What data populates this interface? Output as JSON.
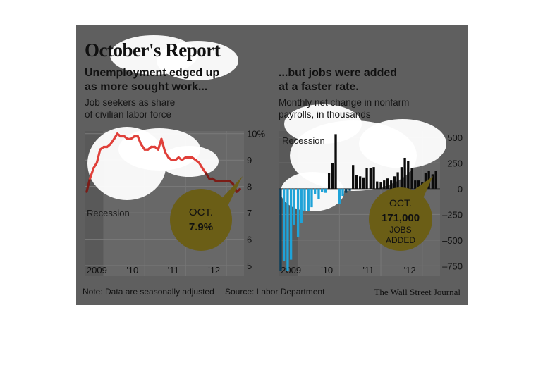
{
  "header": {
    "title": "October's Report",
    "left_headline_line1": "Unemployment edged up",
    "left_headline_line2": "as more sought work...",
    "left_subhead_line1": "Job seekers as share",
    "left_subhead_line2": "of civilian labor force",
    "right_headline_line1": "...but jobs were added",
    "right_headline_line2": "at a faster rate.",
    "right_subhead_line1": "Monthly net change in nonfarm",
    "right_subhead_line2": "payrolls, in thousands"
  },
  "footer": {
    "note": "Note: Data are seasonally adjusted",
    "source": "Source: Labor Department",
    "brand": "The Wall Street Journal"
  },
  "colors": {
    "card_background": "#5f5f5f",
    "plot_background": "#686868",
    "recession_shade": "#595959",
    "unemployment_line": "#7b1c17",
    "unemployment_line_highlighted": "#e0403a",
    "job_gain_bar": "#0b0b0b",
    "job_loss_bar": "#0c3f5a",
    "job_loss_bar_highlighted": "#1fa3d8",
    "callout": "#6b5e16",
    "highlight_blob": "#ffffff"
  },
  "chart_data": [
    {
      "type": "line",
      "title": "Unemployment edged up as more sought work...",
      "subtitle": "Job seekers as share of civilian labor force",
      "x_tick_labels": [
        "2009",
        "'10",
        "'11",
        "'12"
      ],
      "y_tick_labels": [
        "10%",
        "9",
        "8",
        "7",
        "6",
        "5"
      ],
      "ylim": [
        4.6,
        10.1
      ],
      "xlim": [
        2008.95,
        2012.85
      ],
      "grid": true,
      "recession_shade": {
        "start": 2008.95,
        "end": 2009.42,
        "label": "Recession"
      },
      "series": [
        {
          "x": [
            2009.0,
            2009.08,
            2009.17,
            2009.25,
            2009.33,
            2009.42,
            2009.5,
            2009.58,
            2009.67,
            2009.75,
            2009.83,
            2009.92,
            2010.0,
            2010.08,
            2010.17,
            2010.25,
            2010.33,
            2010.42,
            2010.5,
            2010.58,
            2010.67,
            2010.75,
            2010.83,
            2010.92,
            2011.0,
            2011.08,
            2011.17,
            2011.25,
            2011.33,
            2011.42,
            2011.5,
            2011.58,
            2011.67,
            2011.75,
            2011.83,
            2011.92,
            2012.0,
            2012.08,
            2012.17,
            2012.25,
            2012.33,
            2012.42,
            2012.5,
            2012.58,
            2012.67,
            2012.75
          ],
          "values": [
            7.8,
            8.3,
            8.7,
            8.9,
            9.4,
            9.5,
            9.5,
            9.6,
            9.8,
            10.0,
            9.9,
            9.9,
            9.8,
            9.8,
            9.9,
            9.9,
            9.6,
            9.4,
            9.4,
            9.5,
            9.5,
            9.4,
            9.8,
            9.3,
            9.1,
            9.0,
            9.0,
            9.1,
            9.0,
            9.1,
            9.1,
            9.1,
            9.0,
            8.9,
            8.7,
            8.5,
            8.3,
            8.3,
            8.2,
            8.2,
            8.2,
            8.2,
            8.2,
            8.1,
            7.8,
            7.9
          ]
        }
      ],
      "callout": {
        "line1": "OCT.",
        "line2": "7.9%"
      }
    },
    {
      "type": "bar",
      "title": "...but jobs were added at a faster rate.",
      "subtitle": "Monthly net change in nonfarm payrolls, in thousands",
      "x_tick_labels": [
        "2009",
        "'10",
        "'11",
        "'12"
      ],
      "y_tick_labels": [
        "500",
        "250",
        "0",
        "–250",
        "–500",
        "–750"
      ],
      "ylim": [
        -850,
        560
      ],
      "xlim": [
        2008.95,
        2012.85
      ],
      "grid": true,
      "recession_shade": {
        "start": 2008.95,
        "end": 2009.42,
        "label": "Recession"
      },
      "series": [
        {
          "x": [
            2009.0,
            2009.08,
            2009.17,
            2009.25,
            2009.33,
            2009.42,
            2009.5,
            2009.58,
            2009.67,
            2009.75,
            2009.83,
            2009.92,
            2010.0,
            2010.08,
            2010.17,
            2010.25,
            2010.33,
            2010.42,
            2010.5,
            2010.58,
            2010.67,
            2010.75,
            2010.83,
            2010.92,
            2011.0,
            2011.08,
            2011.17,
            2011.25,
            2011.33,
            2011.42,
            2011.5,
            2011.58,
            2011.67,
            2011.75,
            2011.83,
            2011.92,
            2012.0,
            2012.08,
            2012.17,
            2012.25,
            2012.33,
            2012.42,
            2012.5,
            2012.58,
            2012.67,
            2012.75
          ],
          "values": [
            -800,
            -700,
            -800,
            -690,
            -350,
            -470,
            -330,
            -220,
            -220,
            -180,
            -50,
            -100,
            -30,
            -40,
            150,
            250,
            530,
            -150,
            -70,
            -40,
            -20,
            230,
            130,
            120,
            110,
            200,
            200,
            210,
            70,
            60,
            80,
            100,
            80,
            120,
            160,
            210,
            300,
            270,
            200,
            80,
            80,
            60,
            150,
            170,
            140,
            171
          ]
        }
      ],
      "callout": {
        "line1": "OCT.",
        "line2": "171,000",
        "line3": "JOBS",
        "line4": "ADDED"
      }
    }
  ]
}
